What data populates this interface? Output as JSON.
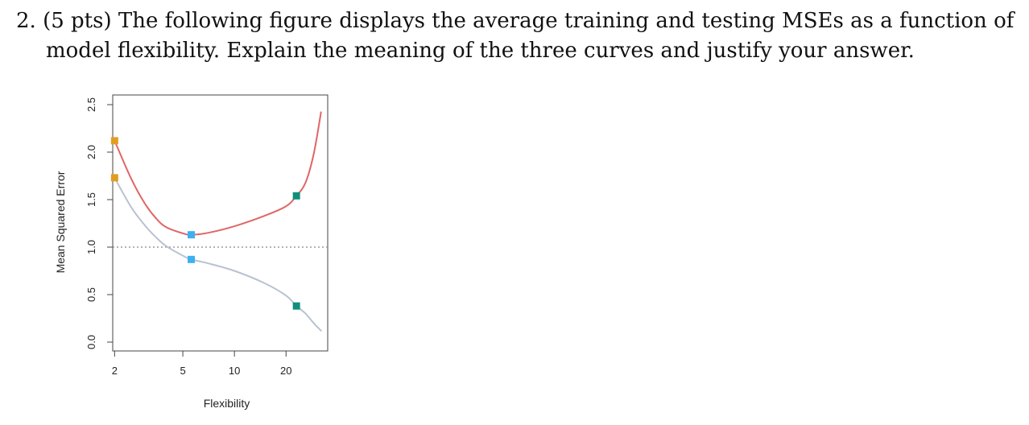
{
  "question": {
    "number": "2.",
    "points": "(5 pts)",
    "line1_text": "The following figure displays the average training and testing MSEs as a function of",
    "line2_text": "model flexibility. Explain the meaning of the three curves and justify your answer."
  },
  "chart_data": {
    "type": "line",
    "title": "",
    "xlabel": "Flexibility",
    "ylabel": "Mean Squared Error",
    "x_scale": "log",
    "x_ticks": [
      2,
      5,
      10,
      20
    ],
    "x_tick_labels": [
      "2",
      "5",
      "10",
      "20"
    ],
    "y_ticks": [
      0.0,
      0.5,
      1.0,
      1.5,
      2.0,
      2.5
    ],
    "y_tick_labels": [
      "0.0",
      "0.5",
      "1.0",
      "1.5",
      "2.0",
      "2.5"
    ],
    "xlim": [
      1.95,
      35
    ],
    "ylim": [
      0.0,
      2.5
    ],
    "grid": false,
    "legend": "none",
    "reference_line": {
      "y": 1.0,
      "style": "dotted",
      "color": "#9a9a9a"
    },
    "series": [
      {
        "color": "#e06666",
        "x": [
          2,
          2.5,
          3,
          3.5,
          4,
          5,
          5.6,
          7,
          10,
          15,
          20,
          23,
          26,
          29,
          32
        ],
        "values": [
          2.12,
          1.72,
          1.46,
          1.3,
          1.21,
          1.145,
          1.13,
          1.15,
          1.22,
          1.33,
          1.43,
          1.54,
          1.68,
          1.98,
          2.42
        ]
      },
      {
        "color": "#b9c2d3",
        "x": [
          2,
          2.5,
          3,
          3.5,
          4,
          5,
          5.6,
          7,
          10,
          15,
          20,
          23,
          26,
          29,
          32
        ],
        "values": [
          1.73,
          1.42,
          1.23,
          1.1,
          1.01,
          0.91,
          0.87,
          0.83,
          0.75,
          0.62,
          0.49,
          0.38,
          0.3,
          0.2,
          0.12
        ]
      }
    ],
    "markers": [
      {
        "x": 2,
        "y": 2.12,
        "color": "#e29d1f"
      },
      {
        "x": 2,
        "y": 1.73,
        "color": "#e29d1f"
      },
      {
        "x": 5.6,
        "y": 1.13,
        "color": "#3cb0f0"
      },
      {
        "x": 5.6,
        "y": 0.87,
        "color": "#3cb0f0"
      },
      {
        "x": 23,
        "y": 1.54,
        "color": "#0f8f7a"
      },
      {
        "x": 23,
        "y": 0.38,
        "color": "#0f8f7a"
      }
    ]
  }
}
